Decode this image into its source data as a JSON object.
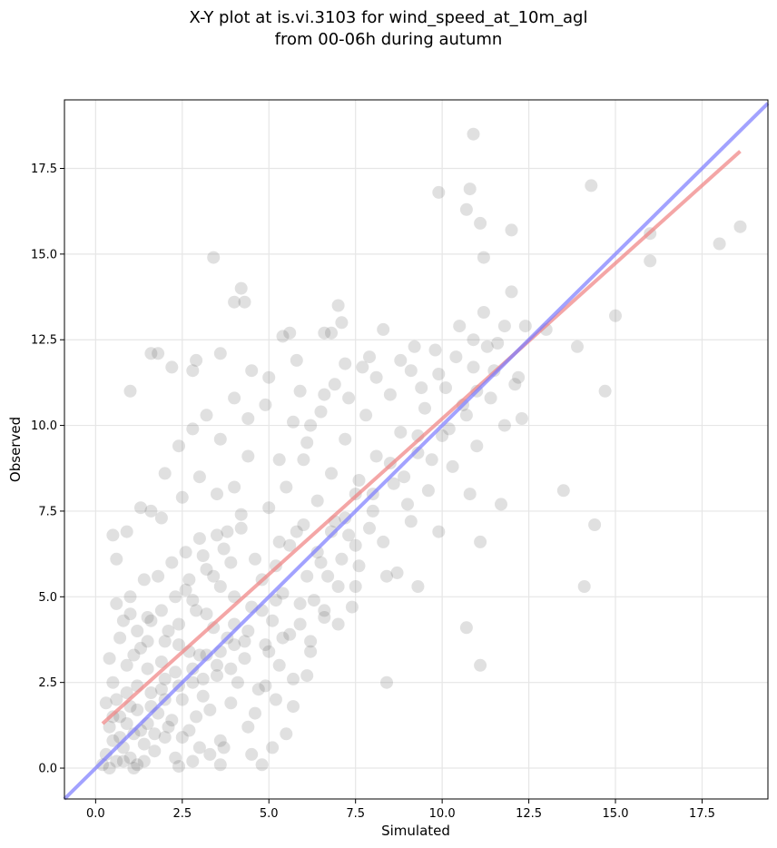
{
  "chart_data": {
    "type": "scatter",
    "title": [
      "X-Y plot at is.vi.3103 for wind_speed_at_10m_agl",
      "from 00-06h during autumn"
    ],
    "xlabel": "Simulated",
    "ylabel": "Observed",
    "xlim": [
      -0.9,
      19.4
    ],
    "ylim": [
      -0.9,
      19.5
    ],
    "x_ticks": [
      "0.0",
      "2.5",
      "5.0",
      "7.5",
      "10.0",
      "12.5",
      "15.0",
      "17.5"
    ],
    "y_ticks": [
      "0.0",
      "2.5",
      "5.0",
      "7.5",
      "10.0",
      "12.5",
      "15.0",
      "17.5"
    ],
    "grid": true,
    "colors": {
      "points": "#404040",
      "fit_line": "#f08080",
      "identity_line": "#7a7aff"
    },
    "series": [
      {
        "kind": "points",
        "points": [
          [
            0.3,
            0.4
          ],
          [
            0.4,
            1.2
          ],
          [
            0.5,
            0.8
          ],
          [
            0.6,
            2.0
          ],
          [
            0.6,
            0.2
          ],
          [
            0.7,
            1.5
          ],
          [
            0.8,
            0.6
          ],
          [
            0.9,
            3.0
          ],
          [
            1.0,
            0.3
          ],
          [
            1.0,
            1.8
          ],
          [
            1.1,
            1.0
          ],
          [
            1.2,
            2.4
          ],
          [
            1.2,
            0.1
          ],
          [
            1.3,
            3.5
          ],
          [
            1.4,
            0.7
          ],
          [
            1.5,
            1.3
          ],
          [
            1.5,
            4.4
          ],
          [
            1.6,
            2.2
          ],
          [
            1.7,
            0.5
          ],
          [
            1.8,
            1.6
          ],
          [
            1.9,
            3.1
          ],
          [
            2.0,
            0.9
          ],
          [
            2.0,
            2.6
          ],
          [
            2.1,
            4.0
          ],
          [
            2.2,
            1.4
          ],
          [
            2.3,
            0.3
          ],
          [
            2.4,
            3.6
          ],
          [
            2.5,
            2.0
          ],
          [
            2.6,
            5.2
          ],
          [
            2.7,
            1.1
          ],
          [
            2.8,
            2.9
          ],
          [
            2.9,
            4.6
          ],
          [
            3.0,
            0.6
          ],
          [
            3.0,
            3.3
          ],
          [
            3.1,
            2.1
          ],
          [
            3.2,
            5.8
          ],
          [
            3.3,
            1.7
          ],
          [
            3.4,
            4.1
          ],
          [
            3.5,
            2.7
          ],
          [
            3.6,
            0.8
          ],
          [
            3.7,
            6.4
          ],
          [
            3.8,
            3.8
          ],
          [
            3.9,
            1.9
          ],
          [
            4.0,
            5.0
          ],
          [
            4.1,
            2.5
          ],
          [
            4.2,
            7.0
          ],
          [
            4.3,
            3.2
          ],
          [
            4.4,
            1.2
          ],
          [
            4.5,
            4.7
          ],
          [
            4.6,
            6.1
          ],
          [
            4.7,
            2.3
          ],
          [
            4.8,
            5.5
          ],
          [
            4.9,
            3.6
          ],
          [
            5.0,
            7.6
          ],
          [
            5.1,
            4.3
          ],
          [
            5.2,
            2.0
          ],
          [
            5.3,
            6.6
          ],
          [
            5.4,
            5.1
          ],
          [
            5.5,
            8.2
          ],
          [
            5.6,
            3.9
          ],
          [
            5.8,
            6.9
          ],
          [
            5.9,
            4.8
          ],
          [
            6.0,
            9.0
          ],
          [
            6.1,
            5.6
          ],
          [
            6.2,
            3.4
          ],
          [
            6.4,
            7.8
          ],
          [
            6.5,
            6.0
          ],
          [
            6.6,
            4.6
          ],
          [
            6.8,
            8.6
          ],
          [
            6.9,
            7.2
          ],
          [
            7.0,
            5.3
          ],
          [
            7.2,
            9.6
          ],
          [
            7.3,
            6.8
          ],
          [
            7.5,
            8.0
          ],
          [
            7.6,
            5.9
          ],
          [
            7.8,
            10.3
          ],
          [
            8.0,
            7.5
          ],
          [
            8.1,
            9.1
          ],
          [
            8.3,
            6.6
          ],
          [
            8.5,
            10.9
          ],
          [
            8.6,
            8.3
          ],
          [
            8.8,
            9.8
          ],
          [
            9.0,
            7.7
          ],
          [
            9.1,
            11.6
          ],
          [
            9.3,
            9.2
          ],
          [
            9.5,
            10.5
          ],
          [
            9.6,
            8.1
          ],
          [
            9.8,
            12.2
          ],
          [
            10.0,
            9.7
          ],
          [
            10.1,
            11.1
          ],
          [
            10.3,
            8.8
          ],
          [
            10.5,
            12.9
          ],
          [
            10.7,
            10.3
          ],
          [
            10.9,
            11.7
          ],
          [
            11.0,
            9.4
          ],
          [
            11.2,
            13.3
          ],
          [
            11.4,
            10.8
          ],
          [
            11.6,
            12.4
          ],
          [
            11.8,
            10.0
          ],
          [
            12.0,
            13.9
          ],
          [
            12.2,
            11.4
          ],
          [
            12.4,
            12.9
          ],
          [
            13.0,
            12.8
          ],
          [
            13.9,
            12.3
          ],
          [
            14.1,
            5.3
          ],
          [
            14.4,
            7.1
          ],
          [
            14.7,
            11.0
          ],
          [
            15.0,
            13.2
          ],
          [
            14.3,
            17.0
          ],
          [
            16.0,
            15.6
          ],
          [
            16.0,
            14.8
          ],
          [
            18.0,
            15.3
          ],
          [
            18.6,
            15.8
          ],
          [
            10.9,
            18.5
          ],
          [
            9.9,
            16.8
          ],
          [
            10.8,
            16.9
          ],
          [
            11.1,
            15.9
          ],
          [
            12.0,
            15.7
          ],
          [
            3.4,
            14.9
          ],
          [
            4.2,
            14.0
          ],
          [
            4.0,
            13.6
          ],
          [
            4.3,
            13.6
          ],
          [
            5.4,
            12.6
          ],
          [
            6.8,
            12.7
          ],
          [
            7.0,
            13.5
          ],
          [
            8.3,
            12.8
          ],
          [
            11.2,
            14.9
          ],
          [
            10.7,
            16.3
          ],
          [
            1.6,
            12.1
          ],
          [
            1.8,
            12.1
          ],
          [
            1.0,
            11.0
          ],
          [
            2.2,
            11.7
          ],
          [
            2.9,
            11.9
          ],
          [
            2.8,
            11.6
          ],
          [
            3.6,
            12.1
          ],
          [
            4.5,
            11.6
          ],
          [
            5.0,
            11.4
          ],
          [
            5.8,
            11.9
          ],
          [
            1.6,
            7.5
          ],
          [
            1.3,
            7.6
          ],
          [
            1.9,
            7.3
          ],
          [
            0.9,
            6.9
          ],
          [
            0.5,
            6.8
          ],
          [
            0.6,
            6.1
          ],
          [
            10.8,
            8.0
          ],
          [
            11.1,
            6.6
          ],
          [
            13.5,
            8.1
          ],
          [
            10.7,
            4.1
          ],
          [
            11.1,
            3.0
          ],
          [
            8.4,
            2.5
          ],
          [
            4.8,
            0.1
          ],
          [
            5.1,
            0.6
          ],
          [
            5.5,
            1.0
          ],
          [
            5.7,
            1.8
          ],
          [
            4.5,
            0.4
          ],
          [
            2.8,
            0.2
          ],
          [
            3.6,
            0.1
          ],
          [
            2.4,
            0.05
          ],
          [
            6.1,
            2.7
          ],
          [
            7.5,
            5.3
          ],
          [
            8.4,
            5.6
          ],
          [
            8.7,
            5.7
          ],
          [
            9.3,
            5.3
          ],
          [
            9.9,
            6.9
          ],
          [
            11.7,
            7.7
          ],
          [
            9.1,
            7.2
          ],
          [
            12.3,
            10.2
          ],
          [
            12.1,
            11.2
          ],
          [
            0.2,
            0.1
          ],
          [
            0.4,
            0.0
          ],
          [
            0.8,
            0.2
          ],
          [
            1.1,
            0.0
          ],
          [
            1.4,
            0.2
          ],
          [
            0.7,
            0.9
          ],
          [
            0.3,
            1.9
          ],
          [
            0.5,
            2.5
          ],
          [
            0.9,
            2.2
          ],
          [
            1.3,
            1.1
          ],
          [
            1.7,
            1.0
          ],
          [
            2.1,
            1.2
          ],
          [
            2.5,
            0.9
          ],
          [
            2.9,
            1.5
          ],
          [
            3.3,
            0.4
          ],
          [
            3.7,
            0.6
          ],
          [
            1.5,
            2.9
          ],
          [
            1.9,
            2.3
          ],
          [
            2.3,
            2.8
          ],
          [
            2.7,
            3.4
          ],
          [
            3.1,
            2.6
          ],
          [
            3.5,
            3.0
          ],
          [
            3.9,
            2.9
          ],
          [
            4.3,
            3.7
          ],
          [
            1.2,
            4.0
          ],
          [
            1.6,
            4.3
          ],
          [
            2.0,
            3.7
          ],
          [
            2.4,
            4.2
          ],
          [
            2.8,
            4.9
          ],
          [
            3.2,
            4.5
          ],
          [
            3.6,
            5.3
          ],
          [
            4.0,
            4.2
          ],
          [
            1.4,
            5.5
          ],
          [
            1.8,
            5.6
          ],
          [
            2.2,
            6.0
          ],
          [
            2.6,
            6.3
          ],
          [
            3.0,
            6.7
          ],
          [
            3.4,
            5.6
          ],
          [
            3.8,
            6.9
          ],
          [
            4.2,
            7.4
          ],
          [
            0.6,
            4.8
          ],
          [
            0.8,
            4.3
          ],
          [
            1.0,
            5.0
          ],
          [
            2.5,
            7.9
          ],
          [
            3.0,
            8.5
          ],
          [
            3.5,
            8.0
          ],
          [
            4.0,
            8.2
          ],
          [
            4.4,
            9.1
          ],
          [
            2.0,
            8.6
          ],
          [
            2.4,
            9.4
          ],
          [
            2.8,
            9.9
          ],
          [
            3.2,
            10.3
          ],
          [
            3.6,
            9.6
          ],
          [
            4.0,
            10.8
          ],
          [
            4.4,
            10.2
          ],
          [
            4.9,
            10.6
          ],
          [
            5.3,
            9.0
          ],
          [
            5.7,
            10.1
          ],
          [
            6.1,
            9.5
          ],
          [
            6.5,
            10.4
          ],
          [
            6.9,
            11.2
          ],
          [
            7.3,
            10.8
          ],
          [
            7.7,
            11.7
          ],
          [
            8.1,
            11.4
          ],
          [
            5.2,
            5.9
          ],
          [
            5.6,
            6.5
          ],
          [
            6.0,
            7.1
          ],
          [
            6.4,
            6.3
          ],
          [
            6.8,
            6.9
          ],
          [
            7.2,
            7.3
          ],
          [
            7.6,
            8.4
          ],
          [
            8.0,
            8.0
          ],
          [
            8.5,
            8.9
          ],
          [
            8.9,
            8.5
          ],
          [
            9.3,
            9.7
          ],
          [
            9.7,
            9.0
          ],
          [
            10.2,
            9.9
          ],
          [
            10.6,
            10.6
          ],
          [
            11.0,
            11.0
          ],
          [
            11.5,
            11.6
          ],
          [
            5.0,
            3.4
          ],
          [
            5.4,
            3.8
          ],
          [
            5.9,
            4.2
          ],
          [
            6.3,
            4.9
          ],
          [
            6.7,
            5.6
          ],
          [
            7.1,
            6.1
          ],
          [
            7.5,
            6.5
          ],
          [
            7.9,
            7.0
          ],
          [
            4.6,
            1.6
          ],
          [
            4.9,
            2.4
          ],
          [
            5.3,
            3.0
          ],
          [
            5.7,
            2.6
          ],
          [
            6.2,
            3.7
          ],
          [
            6.6,
            4.4
          ],
          [
            7.0,
            4.2
          ],
          [
            7.4,
            4.7
          ],
          [
            1.1,
            3.3
          ],
          [
            1.5,
            3.7
          ],
          [
            1.9,
            4.6
          ],
          [
            2.3,
            5.0
          ],
          [
            2.7,
            5.5
          ],
          [
            3.1,
            6.2
          ],
          [
            3.5,
            6.8
          ],
          [
            3.9,
            6.0
          ],
          [
            0.4,
            3.2
          ],
          [
            0.7,
            3.8
          ],
          [
            1.0,
            4.5
          ],
          [
            0.5,
            1.5
          ],
          [
            0.9,
            1.3
          ],
          [
            1.2,
            1.7
          ],
          [
            1.6,
            1.8
          ],
          [
            2.0,
            2.0
          ],
          [
            2.4,
            2.4
          ],
          [
            2.8,
            2.5
          ],
          [
            3.2,
            3.3
          ],
          [
            3.6,
            3.4
          ],
          [
            4.0,
            3.6
          ],
          [
            4.4,
            4.0
          ],
          [
            4.8,
            4.6
          ],
          [
            5.2,
            4.9
          ],
          [
            9.4,
            11.1
          ],
          [
            9.9,
            11.5
          ],
          [
            10.4,
            12.0
          ],
          [
            10.9,
            12.5
          ],
          [
            11.3,
            12.3
          ],
          [
            11.8,
            12.9
          ],
          [
            9.2,
            12.3
          ],
          [
            8.8,
            11.9
          ],
          [
            7.9,
            12.0
          ],
          [
            7.2,
            11.8
          ],
          [
            6.6,
            10.9
          ],
          [
            6.2,
            10.0
          ],
          [
            5.9,
            11.0
          ],
          [
            5.6,
            12.7
          ],
          [
            6.6,
            12.7
          ],
          [
            7.1,
            13.0
          ]
        ]
      },
      {
        "kind": "fit",
        "points": [
          [
            0.2,
            1.3
          ],
          [
            18.6,
            18.0
          ]
        ]
      },
      {
        "kind": "identity",
        "points": [
          [
            -0.9,
            -0.9
          ],
          [
            19.4,
            19.4
          ]
        ]
      }
    ]
  }
}
